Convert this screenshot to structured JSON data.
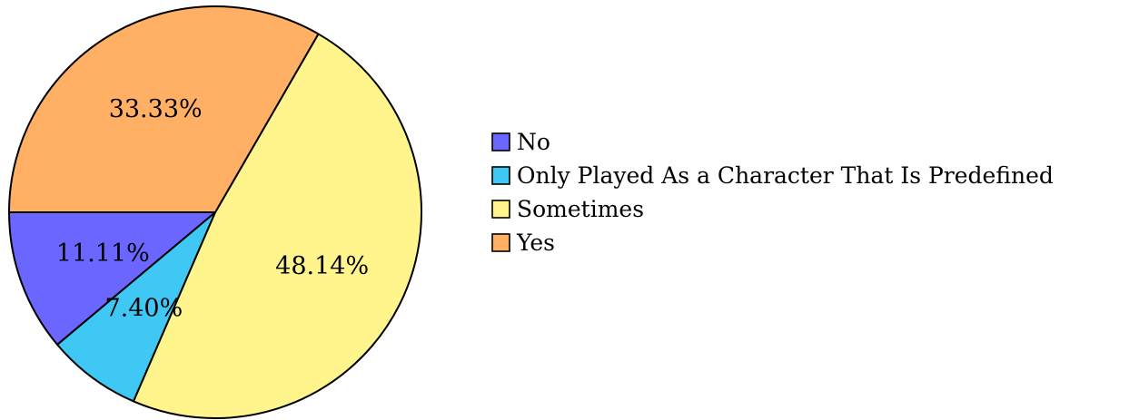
{
  "chart_data": {
    "type": "pie",
    "title": "",
    "slices": [
      {
        "label": "No",
        "value": 11.11,
        "display": "11.11%",
        "color": "#6b66ff"
      },
      {
        "label": "Only Played As a Character That Is Predefined",
        "value": 7.4,
        "display": "7.40%",
        "color": "#40c8f4"
      },
      {
        "label": "Sometimes",
        "value": 48.14,
        "display": "48.14%",
        "color": "#fff58c"
      },
      {
        "label": "Yes",
        "value": 33.33,
        "display": "33.33%",
        "color": "#ffb064"
      }
    ],
    "start_angle_deg": 180,
    "direction": "counterclockwise",
    "legend_position": "right",
    "stroke_color": "#000000"
  }
}
